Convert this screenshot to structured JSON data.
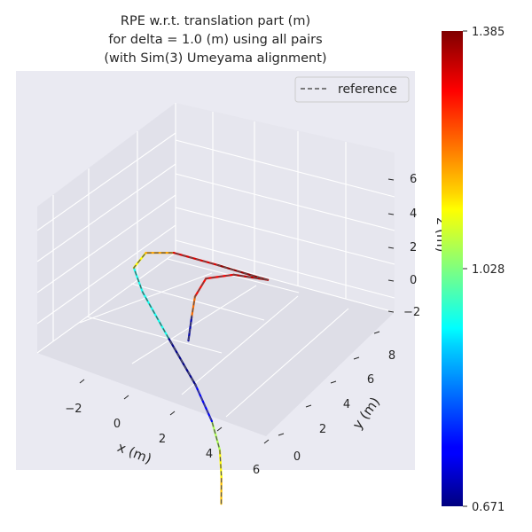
{
  "chart_data": {
    "type": "line",
    "projection": "3d",
    "title_lines": [
      "RPE w.r.t. translation part (m)",
      "for delta = 1.0 (m) using all pairs",
      "(with Sim(3) Umeyama alignment)"
    ],
    "xlabel": "x (m)",
    "ylabel": "y (m)",
    "zlabel": "z (m)",
    "x_ticks": [
      "−2",
      "0",
      "2",
      "4",
      "6"
    ],
    "y_ticks": [
      "0",
      "2",
      "4",
      "6",
      "8"
    ],
    "z_ticks": [
      "−2",
      "0",
      "2",
      "4",
      "6"
    ],
    "legend": {
      "placement": "top-right",
      "entries": [
        "reference"
      ]
    },
    "colorbar": {
      "colormap": "jet",
      "min": 0.671,
      "mid": 1.028,
      "max": 1.385,
      "tick_labels": [
        "1.385",
        "1.028",
        "0.671"
      ]
    },
    "series": [
      {
        "name": "reference",
        "style": "dashed",
        "color": "#555555",
        "points": [
          {
            "x": 4.6,
            "y": 0.4,
            "z": -2.9
          },
          {
            "x": 4.5,
            "y": 0.9,
            "z": -1.8
          },
          {
            "x": 4.3,
            "y": 1.5,
            "z": -0.8
          },
          {
            "x": 3.8,
            "y": 2.2,
            "z": 0.1
          },
          {
            "x": 2.9,
            "y": 3.0,
            "z": 1.2
          },
          {
            "x": 1.5,
            "y": 3.9,
            "z": 2.6
          },
          {
            "x": 0.2,
            "y": 4.7,
            "z": 4.0
          },
          {
            "x": -0.3,
            "y": 5.2,
            "z": 4.8
          },
          {
            "x": 0.1,
            "y": 5.8,
            "z": 5.4
          },
          {
            "x": 1.2,
            "y": 6.4,
            "z": 5.5
          },
          {
            "x": 3.0,
            "y": 7.2,
            "z": 5.1
          },
          {
            "x": 4.6,
            "y": 7.9,
            "z": 4.7
          },
          {
            "x": 5.0,
            "y": 8.1,
            "z": 4.6
          },
          {
            "x": 3.6,
            "y": 7.6,
            "z": 4.6
          },
          {
            "x": 2.5,
            "y": 7.0,
            "z": 4.3
          },
          {
            "x": 2.1,
            "y": 6.6,
            "z": 3.4
          },
          {
            "x": 2.0,
            "y": 6.4,
            "z": 2.4
          },
          {
            "x": 1.9,
            "y": 6.2,
            "z": 1.2
          }
        ],
        "rpe": [
          1.16,
          1.12,
          1.06,
          0.76,
          0.68,
          0.95,
          0.95,
          1.12,
          1.18,
          1.32,
          1.37,
          1.38,
          1.34,
          1.3,
          1.29,
          1.22,
          0.7,
          0.68
        ]
      }
    ]
  }
}
